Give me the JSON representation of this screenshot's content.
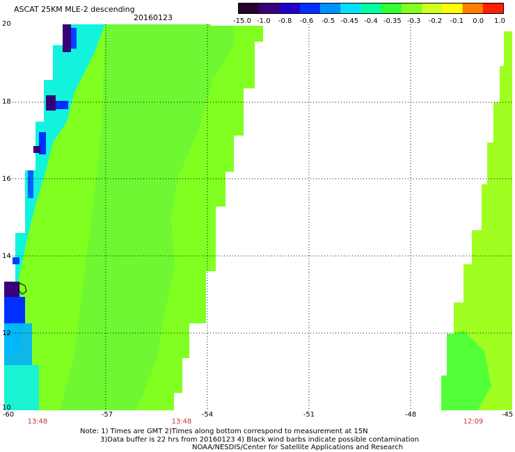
{
  "header": {
    "title": "ASCAT 25KM MLE-2 descending",
    "date": "20160123"
  },
  "colorbar": {
    "labels": [
      "-15.0",
      "-1.0",
      "-0.8",
      "-0.6",
      "-0.5",
      "-0.45",
      "-0.4",
      "-0.35",
      "-0.3",
      "-0.2",
      "-0.1",
      "0.0",
      "1.0"
    ],
    "colors": [
      "#2a0030",
      "#3a007a",
      "#2000c8",
      "#0030ff",
      "#0090ff",
      "#00e0ff",
      "#00ffa0",
      "#30ff30",
      "#80ff20",
      "#d0ff20",
      "#ffff00",
      "#ff8000",
      "#ff2000"
    ]
  },
  "axes": {
    "y_ticks": [
      "20",
      "18",
      "16",
      "14",
      "12",
      "10"
    ],
    "x_ticks": [
      "-60",
      "-57",
      "-54",
      "-51",
      "-48",
      "-45"
    ]
  },
  "times": [
    "13:48",
    "13:48",
    "12:09"
  ],
  "notes": [
    "Note: 1) Times are GMT 2)Times along bottom correspond to measurement at 15N",
    "3)Data buffer is 22 hrs from 20160123 4) Black wind barbs indicate possible contamination",
    "NOAA/NESDIS/Center for Satellite Applications and Research"
  ]
}
